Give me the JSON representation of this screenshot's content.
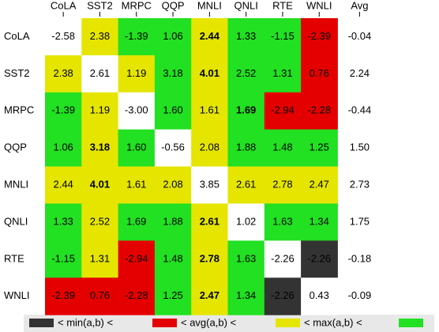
{
  "table": {
    "columns": [
      "CoLA",
      "SST2",
      "MRPC",
      "QQP",
      "MNLI",
      "QNLI",
      "RTE",
      "WNLI",
      "Avg"
    ],
    "rows": [
      {
        "label": "CoLA",
        "avg": "-0.04",
        "cells": [
          {
            "text": "-2.58",
            "color": "#ffffff"
          },
          {
            "text": "2.38",
            "color": "#e5e500"
          },
          {
            "text": "-1.39",
            "color": "#22e022"
          },
          {
            "text": "1.06",
            "color": "#22e022"
          },
          {
            "text": "2.44",
            "color": "#e5e500",
            "bold": true
          },
          {
            "text": "1.33",
            "color": "#22e022"
          },
          {
            "text": "-1.15",
            "color": "#22e022"
          },
          {
            "text": "-2.39",
            "color": "#e50000"
          }
        ]
      },
      {
        "label": "SST2",
        "avg": "2.24",
        "cells": [
          {
            "text": "2.38",
            "color": "#e5e500"
          },
          {
            "text": "2.61",
            "color": "#ffffff"
          },
          {
            "text": "1.19",
            "color": "#e5e500"
          },
          {
            "text": "3.18",
            "color": "#22e022"
          },
          {
            "text": "4.01",
            "color": "#e5e500",
            "bold": true
          },
          {
            "text": "2.52",
            "color": "#22e022"
          },
          {
            "text": "1.31",
            "color": "#22e022"
          },
          {
            "text": "0.76",
            "color": "#e50000"
          }
        ]
      },
      {
        "label": "MRPC",
        "avg": "-0.44",
        "cells": [
          {
            "text": "-1.39",
            "color": "#22e022"
          },
          {
            "text": "1.19",
            "color": "#e5e500"
          },
          {
            "text": "-3.00",
            "color": "#ffffff"
          },
          {
            "text": "1.60",
            "color": "#22e022"
          },
          {
            "text": "1.61",
            "color": "#e5e500"
          },
          {
            "text": "1.69",
            "color": "#22e022",
            "bold": true
          },
          {
            "text": "-2.94",
            "color": "#e50000"
          },
          {
            "text": "-2.28",
            "color": "#e50000"
          }
        ]
      },
      {
        "label": "QQP",
        "avg": "1.50",
        "cells": [
          {
            "text": "1.06",
            "color": "#22e022"
          },
          {
            "text": "3.18",
            "color": "#e5e500",
            "bold": true
          },
          {
            "text": "1.60",
            "color": "#22e022"
          },
          {
            "text": "-0.56",
            "color": "#ffffff"
          },
          {
            "text": "2.08",
            "color": "#e5e500"
          },
          {
            "text": "1.88",
            "color": "#22e022"
          },
          {
            "text": "1.48",
            "color": "#22e022"
          },
          {
            "text": "1.25",
            "color": "#22e022"
          }
        ]
      },
      {
        "label": "MNLI",
        "avg": "2.73",
        "cells": [
          {
            "text": "2.44",
            "color": "#e5e500"
          },
          {
            "text": "4.01",
            "color": "#e5e500",
            "bold": true
          },
          {
            "text": "1.61",
            "color": "#e5e500"
          },
          {
            "text": "2.08",
            "color": "#e5e500"
          },
          {
            "text": "3.85",
            "color": "#ffffff"
          },
          {
            "text": "2.61",
            "color": "#e5e500"
          },
          {
            "text": "2.78",
            "color": "#e5e500"
          },
          {
            "text": "2.47",
            "color": "#e5e500"
          }
        ]
      },
      {
        "label": "QNLI",
        "avg": "1.75",
        "cells": [
          {
            "text": "1.33",
            "color": "#22e022"
          },
          {
            "text": "2.52",
            "color": "#e5e500"
          },
          {
            "text": "1.69",
            "color": "#22e022"
          },
          {
            "text": "1.88",
            "color": "#22e022"
          },
          {
            "text": "2.61",
            "color": "#e5e500",
            "bold": true
          },
          {
            "text": "1.02",
            "color": "#ffffff"
          },
          {
            "text": "1.63",
            "color": "#22e022"
          },
          {
            "text": "1.34",
            "color": "#22e022"
          }
        ]
      },
      {
        "label": "RTE",
        "avg": "-0.18",
        "cells": [
          {
            "text": "-1.15",
            "color": "#22e022"
          },
          {
            "text": "1.31",
            "color": "#e5e500"
          },
          {
            "text": "-2.94",
            "color": "#e50000"
          },
          {
            "text": "1.48",
            "color": "#22e022"
          },
          {
            "text": "2.78",
            "color": "#e5e500",
            "bold": true
          },
          {
            "text": "1.63",
            "color": "#22e022"
          },
          {
            "text": "-2.26",
            "color": "#ffffff"
          },
          {
            "text": "-2.26",
            "color": "#333333"
          }
        ]
      },
      {
        "label": "WNLI",
        "avg": "-0.09",
        "cells": [
          {
            "text": "-2.39",
            "color": "#e50000"
          },
          {
            "text": "0.76",
            "color": "#e50000"
          },
          {
            "text": "-2.28",
            "color": "#e50000"
          },
          {
            "text": "1.25",
            "color": "#22e022"
          },
          {
            "text": "2.47",
            "color": "#e5e500",
            "bold": true
          },
          {
            "text": "1.34",
            "color": "#22e022"
          },
          {
            "text": "-2.26",
            "color": "#333333"
          },
          {
            "text": "0.43",
            "color": "#ffffff"
          }
        ]
      }
    ]
  },
  "legend": {
    "swatches": [
      "#333333",
      "#e50000",
      "#e5e500",
      "#22e022"
    ],
    "labels": [
      "< min(a,b) <",
      "< avg(a,b) <",
      "< max(a,b) <"
    ]
  }
}
